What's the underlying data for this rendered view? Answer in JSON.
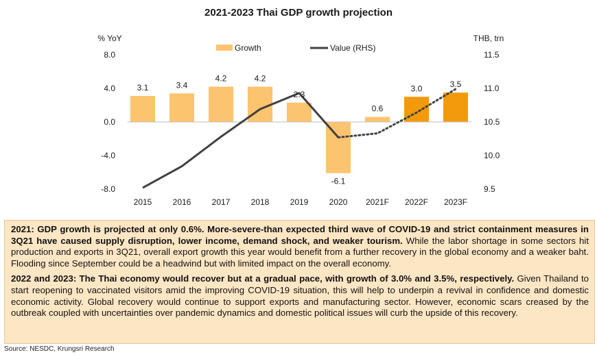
{
  "chart_data": {
    "type": "bar+line",
    "title": "2021-2023 Thai GDP growth projection",
    "categories": [
      "2015",
      "2016",
      "2017",
      "2018",
      "2019",
      "2020",
      "2021F",
      "2022F",
      "2023F"
    ],
    "y_left": {
      "label": "% YoY",
      "ticks": [
        "8.0",
        "4.0",
        "0.0",
        "-4.0",
        "-8.0"
      ],
      "range": [
        -8,
        8
      ]
    },
    "y_right": {
      "label": "THB, trn",
      "ticks": [
        "11.5",
        "11.0",
        "10.5",
        "10.0",
        "9.5"
      ],
      "range": [
        9.5,
        11.5
      ]
    },
    "legend": {
      "placement": "top",
      "bar_label": "Growth",
      "line_label": "Value (RHS)"
    },
    "series": [
      {
        "name": "Growth",
        "kind": "bar",
        "values": [
          3.1,
          3.4,
          4.2,
          4.2,
          2.3,
          -6.1,
          0.6,
          3.0,
          3.5
        ],
        "labels": [
          "3.1",
          "3.4",
          "4.2",
          "4.2",
          "2.3",
          "-6.1",
          "0.6",
          "3.0",
          "3.5"
        ],
        "actual_color": "#fdc46f",
        "forecast_color": "#f39a0c",
        "forecast_from_index": 7
      },
      {
        "name": "Value (RHS)",
        "kind": "line",
        "values": [
          9.52,
          9.84,
          10.28,
          10.69,
          10.93,
          10.27,
          10.33,
          10.64,
          10.99
        ],
        "color": "#404040",
        "dashed_from_index": 5
      }
    ]
  },
  "commentary": {
    "p1_bold": "2021: GDP growth is projected at only 0.6%. More-severe-than expected third wave of COVID-19 and strict containment measures in 3Q21 have caused supply disruption, lower income, demand shock, and weaker tourism.",
    "p1_text": " While the labor shortage in some sectors hit production and exports in 3Q21, overall export growth this year would benefit from a further recovery in the global economy and a weaker baht. Flooding since September could be a headwind but with limited impact on the overall economy.",
    "p2_bold": "2022 and 2023: The Thai economy would recover but at a gradual pace, with growth of 3.0% and 3.5%, respectively.",
    "p2_text": " Given Thailand to start reopening to vaccinated visitors amid the improving COVID-19 situation, this will help to underpin a revival in confidence and domestic economic activity. Global recovery would continue to support exports and manufacturing sector. However, economic scars creased by the outbreak coupled with uncertainties over pandemic dynamics and domestic political issues will curb the upside of this recovery."
  },
  "source": "Source: NESDC, Krungsri Research"
}
